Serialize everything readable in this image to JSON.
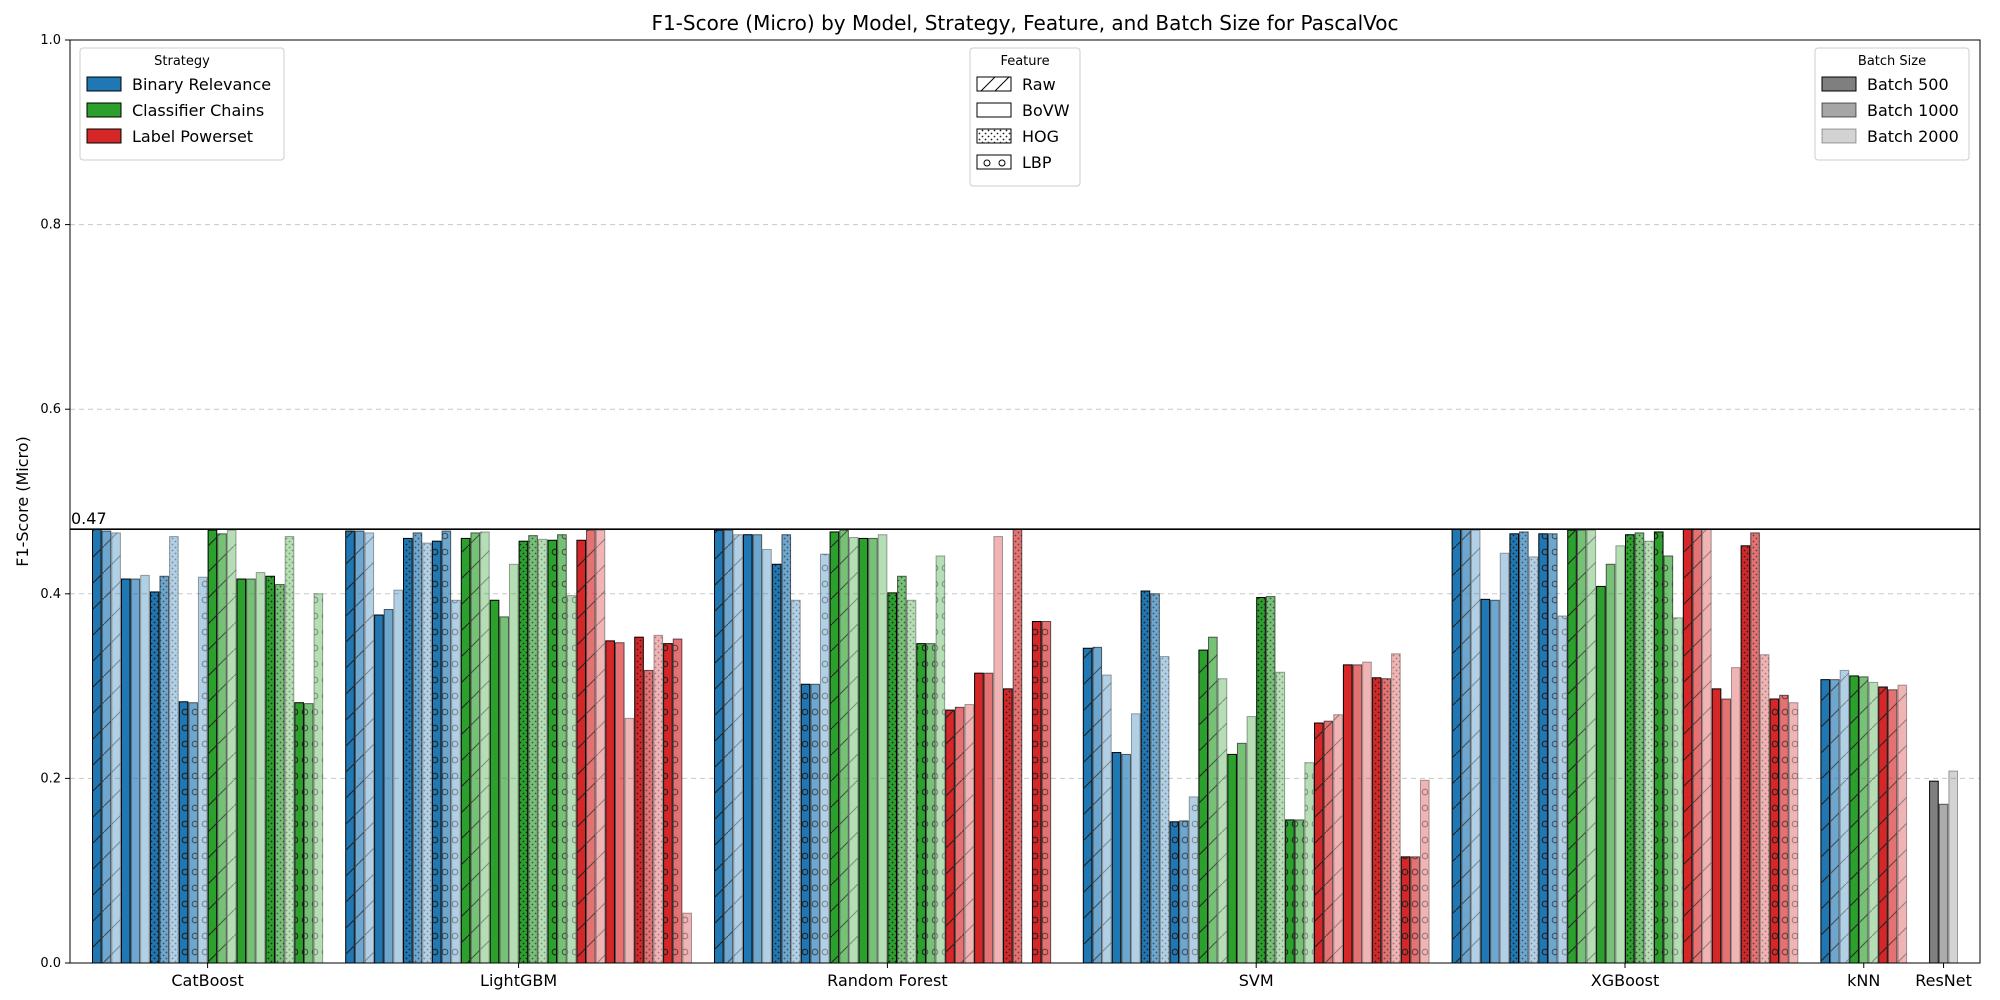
{
  "chart_data": {
    "type": "bar",
    "title": "F1-Score (Micro) by Model, Strategy, Feature, and Batch Size for PascalVoc",
    "ylabel": "F1-Score (Micro)",
    "xlabel": "",
    "ylim": [
      0,
      1.0
    ],
    "yticks": [
      "0.0",
      "0.2",
      "0.4",
      "0.6",
      "0.8",
      "1.0"
    ],
    "grid": "y-dashed",
    "reference_line": {
      "value": 0.47,
      "label": "0.47"
    },
    "colors": {
      "Binary Relevance": "#1f77b4",
      "Classifier Chains": "#2ca02c",
      "Label Powerset": "#d62728"
    },
    "batch_alpha": {
      "Batch 500": 1.0,
      "Batch 1000": 0.65,
      "Batch 2000": 0.35
    },
    "feature_hatch": {
      "Raw": "slash",
      "BoVW": "none",
      "HOG": "dots",
      "LBP": "circles"
    },
    "legends": {
      "strategy": {
        "title": "Strategy",
        "position": "top-left",
        "items": [
          "Binary Relevance",
          "Classifier Chains",
          "Label Powerset"
        ]
      },
      "feature": {
        "title": "Feature",
        "position": "top-center",
        "items": [
          "Raw",
          "BoVW",
          "HOG",
          "LBP"
        ]
      },
      "batch": {
        "title": "Batch Size",
        "position": "top-right",
        "items": [
          "Batch 500",
          "Batch 1000",
          "Batch 2000"
        ]
      }
    },
    "models": [
      {
        "name": "CatBoost",
        "groups": [
          {
            "strategy": "Binary Relevance",
            "feature": "Raw",
            "values": [
              0.47,
              0.468,
              0.466
            ]
          },
          {
            "strategy": "Binary Relevance",
            "feature": "BoVW",
            "values": [
              0.416,
              0.416,
              0.42
            ]
          },
          {
            "strategy": "Binary Relevance",
            "feature": "HOG",
            "values": [
              0.402,
              0.419,
              0.462
            ]
          },
          {
            "strategy": "Binary Relevance",
            "feature": "LBP",
            "values": [
              0.283,
              0.282,
              0.418
            ]
          },
          {
            "strategy": "Classifier Chains",
            "feature": "Raw",
            "values": [
              0.469,
              0.465,
              0.469
            ]
          },
          {
            "strategy": "Classifier Chains",
            "feature": "BoVW",
            "values": [
              0.416,
              0.416,
              0.423
            ]
          },
          {
            "strategy": "Classifier Chains",
            "feature": "HOG",
            "values": [
              0.419,
              0.41,
              0.462
            ]
          },
          {
            "strategy": "Classifier Chains",
            "feature": "LBP",
            "values": [
              0.282,
              0.281,
              0.4
            ]
          }
        ]
      },
      {
        "name": "LightGBM",
        "groups": [
          {
            "strategy": "Binary Relevance",
            "feature": "Raw",
            "values": [
              0.468,
              0.468,
              0.466
            ]
          },
          {
            "strategy": "Binary Relevance",
            "feature": "BoVW",
            "values": [
              0.377,
              0.383,
              0.404
            ]
          },
          {
            "strategy": "Binary Relevance",
            "feature": "HOG",
            "values": [
              0.46,
              0.466,
              0.455
            ]
          },
          {
            "strategy": "Binary Relevance",
            "feature": "LBP",
            "values": [
              0.457,
              0.468,
              0.393
            ]
          },
          {
            "strategy": "Classifier Chains",
            "feature": "Raw",
            "values": [
              0.46,
              0.466,
              0.467
            ]
          },
          {
            "strategy": "Classifier Chains",
            "feature": "BoVW",
            "values": [
              0.393,
              0.375,
              0.432
            ]
          },
          {
            "strategy": "Classifier Chains",
            "feature": "HOG",
            "values": [
              0.457,
              0.463,
              0.459
            ]
          },
          {
            "strategy": "Classifier Chains",
            "feature": "LBP",
            "values": [
              0.458,
              0.464,
              0.398
            ]
          },
          {
            "strategy": "Label Powerset",
            "feature": "Raw",
            "values": [
              0.458,
              0.469,
              0.469
            ]
          },
          {
            "strategy": "Label Powerset",
            "feature": "BoVW",
            "values": [
              0.349,
              0.347,
              0.265
            ]
          },
          {
            "strategy": "Label Powerset",
            "feature": "HOG",
            "values": [
              0.353,
              0.317,
              0.355
            ]
          },
          {
            "strategy": "Label Powerset",
            "feature": "LBP",
            "values": [
              0.346,
              0.351,
              0.054
            ]
          }
        ]
      },
      {
        "name": "Random Forest",
        "groups": [
          {
            "strategy": "Binary Relevance",
            "feature": "Raw",
            "values": [
              0.469,
              0.469,
              0.464
            ]
          },
          {
            "strategy": "Binary Relevance",
            "feature": "BoVW",
            "values": [
              0.464,
              0.464,
              0.448
            ]
          },
          {
            "strategy": "Binary Relevance",
            "feature": "HOG",
            "values": [
              0.432,
              0.464,
              0.393
            ]
          },
          {
            "strategy": "Binary Relevance",
            "feature": "LBP",
            "values": [
              0.302,
              0.302,
              0.443
            ]
          },
          {
            "strategy": "Classifier Chains",
            "feature": "Raw",
            "values": [
              0.467,
              0.469,
              0.461
            ]
          },
          {
            "strategy": "Classifier Chains",
            "feature": "BoVW",
            "values": [
              0.46,
              0.46,
              0.464
            ]
          },
          {
            "strategy": "Classifier Chains",
            "feature": "HOG",
            "values": [
              0.401,
              0.419,
              0.393
            ]
          },
          {
            "strategy": "Classifier Chains",
            "feature": "LBP",
            "values": [
              0.346,
              0.346,
              0.441
            ]
          },
          {
            "strategy": "Label Powerset",
            "feature": "Raw",
            "values": [
              0.274,
              0.277,
              0.28
            ]
          },
          {
            "strategy": "Label Powerset",
            "feature": "BoVW",
            "values": [
              0.314,
              0.314,
              0.462
            ]
          },
          {
            "strategy": "Label Powerset",
            "feature": "HOG",
            "values": [
              0.297,
              0.47,
              0.0
            ]
          },
          {
            "strategy": "Label Powerset",
            "feature": "LBP",
            "values": [
              0.37,
              0.37,
              0.0
            ]
          }
        ]
      },
      {
        "name": "SVM",
        "groups": [
          {
            "strategy": "Binary Relevance",
            "feature": "Raw",
            "values": [
              0.341,
              0.342,
              0.312
            ]
          },
          {
            "strategy": "Binary Relevance",
            "feature": "BoVW",
            "values": [
              0.228,
              0.226,
              0.27
            ]
          },
          {
            "strategy": "Binary Relevance",
            "feature": "HOG",
            "values": [
              0.403,
              0.4,
              0.332
            ]
          },
          {
            "strategy": "Binary Relevance",
            "feature": "LBP",
            "values": [
              0.153,
              0.154,
              0.18
            ]
          },
          {
            "strategy": "Classifier Chains",
            "feature": "Raw",
            "values": [
              0.339,
              0.353,
              0.308
            ]
          },
          {
            "strategy": "Classifier Chains",
            "feature": "BoVW",
            "values": [
              0.226,
              0.238,
              0.267
            ]
          },
          {
            "strategy": "Classifier Chains",
            "feature": "HOG",
            "values": [
              0.396,
              0.397,
              0.315
            ]
          },
          {
            "strategy": "Classifier Chains",
            "feature": "LBP",
            "values": [
              0.155,
              0.155,
              0.217
            ]
          },
          {
            "strategy": "Label Powerset",
            "feature": "Raw",
            "values": [
              0.26,
              0.262,
              0.269
            ]
          },
          {
            "strategy": "Label Powerset",
            "feature": "BoVW",
            "values": [
              0.323,
              0.323,
              0.326
            ]
          },
          {
            "strategy": "Label Powerset",
            "feature": "HOG",
            "values": [
              0.309,
              0.308,
              0.335
            ]
          },
          {
            "strategy": "Label Powerset",
            "feature": "LBP",
            "values": [
              0.115,
              0.115,
              0.198
            ]
          }
        ]
      },
      {
        "name": "XGBoost",
        "groups": [
          {
            "strategy": "Binary Relevance",
            "feature": "Raw",
            "values": [
              0.47,
              0.47,
              0.469
            ]
          },
          {
            "strategy": "Binary Relevance",
            "feature": "BoVW",
            "values": [
              0.394,
              0.393,
              0.444
            ]
          },
          {
            "strategy": "Binary Relevance",
            "feature": "HOG",
            "values": [
              0.465,
              0.467,
              0.44
            ]
          },
          {
            "strategy": "Binary Relevance",
            "feature": "LBP",
            "values": [
              0.465,
              0.465,
              0.376
            ]
          },
          {
            "strategy": "Classifier Chains",
            "feature": "Raw",
            "values": [
              0.469,
              0.469,
              0.469
            ]
          },
          {
            "strategy": "Classifier Chains",
            "feature": "BoVW",
            "values": [
              0.408,
              0.432,
              0.452
            ]
          },
          {
            "strategy": "Classifier Chains",
            "feature": "HOG",
            "values": [
              0.464,
              0.466,
              0.457
            ]
          },
          {
            "strategy": "Classifier Chains",
            "feature": "LBP",
            "values": [
              0.467,
              0.441,
              0.374
            ]
          },
          {
            "strategy": "Label Powerset",
            "feature": "Raw",
            "values": [
              0.47,
              0.47,
              0.47
            ]
          },
          {
            "strategy": "Label Powerset",
            "feature": "BoVW",
            "values": [
              0.297,
              0.286,
              0.32
            ]
          },
          {
            "strategy": "Label Powerset",
            "feature": "HOG",
            "values": [
              0.452,
              0.466,
              0.334
            ]
          },
          {
            "strategy": "Label Powerset",
            "feature": "LBP",
            "values": [
              0.286,
              0.29,
              0.282
            ]
          }
        ]
      },
      {
        "name": "kNN",
        "groups": [
          {
            "strategy": "Binary Relevance",
            "feature": "Raw",
            "values": [
              0.307,
              0.307,
              0.317
            ]
          },
          {
            "strategy": "Classifier Chains",
            "feature": "Raw",
            "values": [
              0.311,
              0.31,
              0.304
            ]
          },
          {
            "strategy": "Label Powerset",
            "feature": "Raw",
            "values": [
              0.299,
              0.296,
              0.301
            ]
          }
        ]
      },
      {
        "name": "ResNet",
        "groups": [
          {
            "strategy": "ResNet",
            "feature": "BoVW",
            "values": [
              0.197,
              0.172,
              0.208
            ]
          }
        ]
      }
    ]
  }
}
